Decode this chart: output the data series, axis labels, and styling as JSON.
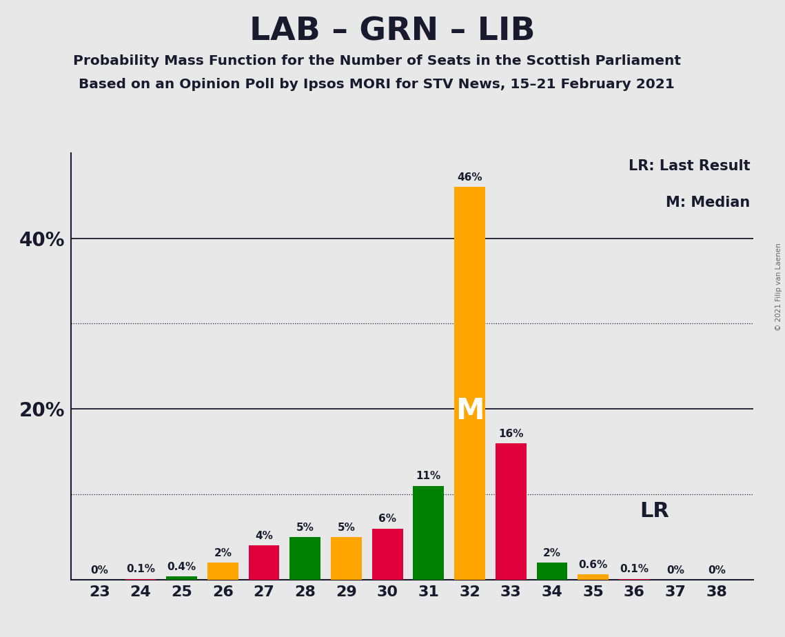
{
  "title": "LAB – GRN – LIB",
  "subtitle1": "Probability Mass Function for the Number of Seats in the Scottish Parliament",
  "subtitle2": "Based on an Opinion Poll by Ipsos MORI for STV News, 15–21 February 2021",
  "copyright": "© 2021 Filip van Laenen",
  "legend_lr": "LR: Last Result",
  "legend_m": "M: Median",
  "seats": [
    23,
    24,
    25,
    26,
    27,
    28,
    29,
    30,
    31,
    32,
    33,
    34,
    35,
    36,
    37,
    38
  ],
  "values": [
    0.0,
    0.1,
    0.4,
    2.0,
    4.0,
    5.0,
    5.0,
    6.0,
    11.0,
    46.0,
    16.0,
    2.0,
    0.6,
    0.1,
    0.0,
    0.0
  ],
  "labels": [
    "0%",
    "0.1%",
    "0.4%",
    "2%",
    "4%",
    "5%",
    "5%",
    "6%",
    "11%",
    "46%",
    "16%",
    "2%",
    "0.6%",
    "0.1%",
    "0%",
    "0%"
  ],
  "colors": [
    "#e0003c",
    "#e0003c",
    "#008000",
    "#ffa500",
    "#e0003c",
    "#008000",
    "#ffa500",
    "#e0003c",
    "#008000",
    "#ffa500",
    "#e0003c",
    "#008000",
    "#ffa500",
    "#e0003c",
    "#e0003c",
    "#e0003c"
  ],
  "median_seat": 32,
  "lr_seat": 34,
  "background_color": "#e8e8e8",
  "major_gridlines": [
    20,
    40
  ],
  "minor_gridlines": [
    10,
    30
  ],
  "bar_width": 0.75
}
